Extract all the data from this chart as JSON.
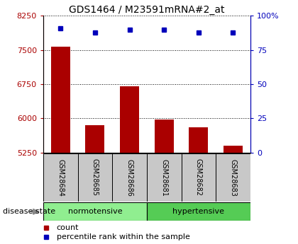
{
  "title": "GDS1464 / M23591mRNA#2_at",
  "samples": [
    "GSM28684",
    "GSM28685",
    "GSM28686",
    "GSM28681",
    "GSM28682",
    "GSM28683"
  ],
  "bar_values": [
    7580,
    5850,
    6700,
    5970,
    5810,
    5400
  ],
  "percentile_values": [
    91,
    88,
    90,
    90,
    88,
    88
  ],
  "ylim_left": [
    5250,
    8250
  ],
  "ylim_right": [
    0,
    100
  ],
  "yticks_left": [
    5250,
    6000,
    6750,
    7500,
    8250
  ],
  "yticks_right": [
    0,
    25,
    50,
    75,
    100
  ],
  "ytick_labels_left": [
    "5250",
    "6000",
    "6750",
    "7500",
    "8250"
  ],
  "ytick_labels_right": [
    "0",
    "25",
    "50",
    "75",
    "100%"
  ],
  "bar_color": "#AA0000",
  "dot_color": "#0000BB",
  "normotensive_label": "normotensive",
  "hypertensive_label": "hypertensive",
  "group_label": "disease state",
  "legend_count": "count",
  "legend_percentile": "percentile rank within the sample",
  "bg_color_norm": "#90EE90",
  "bg_color_hyper": "#55CC55",
  "tick_area_color": "#C8C8C8",
  "title_fontsize": 10,
  "tick_fontsize": 8,
  "sample_fontsize": 7,
  "group_fontsize": 8,
  "legend_fontsize": 8
}
